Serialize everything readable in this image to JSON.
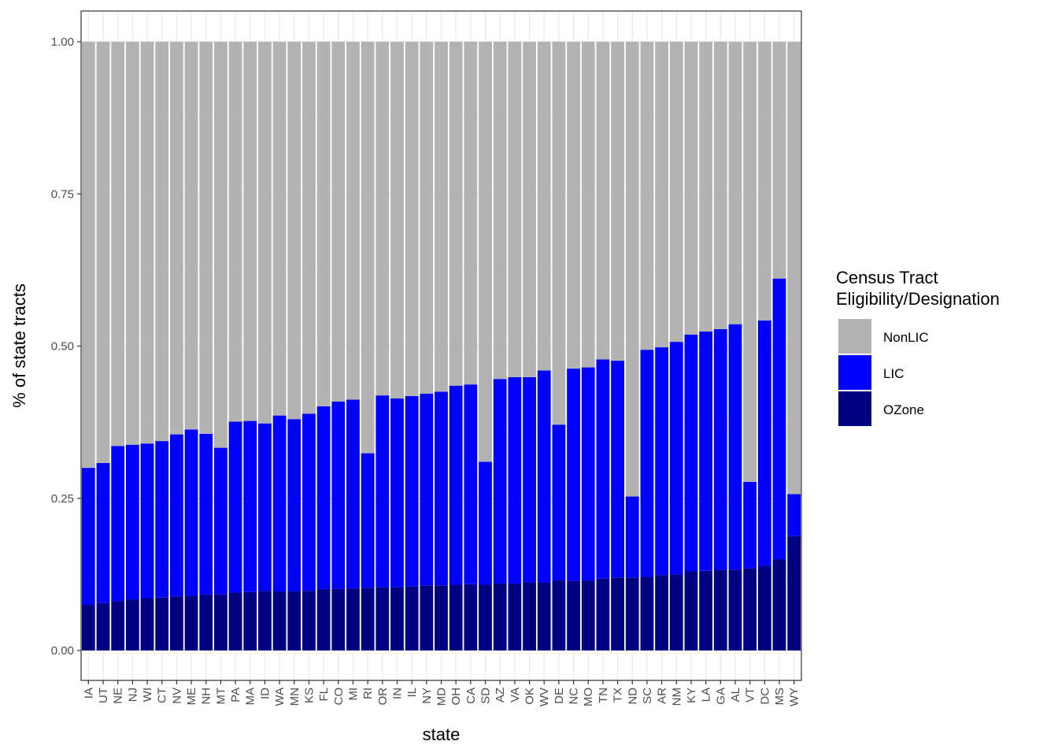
{
  "chart_data": {
    "type": "bar",
    "stacked": true,
    "ylabel": "% of state tracts",
    "xlabel": "state",
    "ylim": [
      -0.05,
      1.05
    ],
    "yticks": [
      0,
      0.25,
      0.5,
      0.75,
      1.0
    ],
    "ytick_labels": [
      "0.00",
      "0.25",
      "0.50",
      "0.75",
      "1.00"
    ],
    "grid": true,
    "legend_position": "right",
    "legend_title": [
      "Census Tract",
      "Eligibility/Designation"
    ],
    "categories": [
      "IA",
      "UT",
      "NE",
      "NJ",
      "WI",
      "CT",
      "NV",
      "ME",
      "NH",
      "MT",
      "PA",
      "MA",
      "ID",
      "WA",
      "MN",
      "KS",
      "FL",
      "CO",
      "MI",
      "RI",
      "OR",
      "IN",
      "IL",
      "NY",
      "MD",
      "OH",
      "CA",
      "SD",
      "AZ",
      "VA",
      "OK",
      "WV",
      "DE",
      "NC",
      "MO",
      "TN",
      "TX",
      "ND",
      "SC",
      "AR",
      "NM",
      "KY",
      "LA",
      "GA",
      "AL",
      "VT",
      "DC",
      "MS",
      "WY"
    ],
    "series": [
      {
        "name": "NonLIC",
        "color": "#b3b3b3",
        "values": [
          0.7,
          0.692,
          0.664,
          0.662,
          0.66,
          0.656,
          0.645,
          0.637,
          0.644,
          0.667,
          0.624,
          0.623,
          0.627,
          0.614,
          0.62,
          0.611,
          0.599,
          0.591,
          0.588,
          0.676,
          0.581,
          0.586,
          0.582,
          0.578,
          0.575,
          0.565,
          0.563,
          0.69,
          0.554,
          0.551,
          0.551,
          0.54,
          0.629,
          0.537,
          0.535,
          0.522,
          0.524,
          0.747,
          0.506,
          0.502,
          0.493,
          0.481,
          0.476,
          0.472,
          0.464,
          0.723,
          0.458,
          0.389,
          0.743
        ]
      },
      {
        "name": "LIC",
        "color": "#0000ff",
        "values": [
          0.225,
          0.23,
          0.255,
          0.254,
          0.254,
          0.257,
          0.266,
          0.273,
          0.264,
          0.241,
          0.281,
          0.281,
          0.275,
          0.289,
          0.283,
          0.291,
          0.3,
          0.308,
          0.31,
          0.221,
          0.315,
          0.31,
          0.313,
          0.315,
          0.318,
          0.327,
          0.328,
          0.202,
          0.336,
          0.339,
          0.337,
          0.348,
          0.256,
          0.349,
          0.35,
          0.36,
          0.356,
          0.133,
          0.373,
          0.374,
          0.382,
          0.389,
          0.393,
          0.396,
          0.403,
          0.142,
          0.403,
          0.461,
          0.069
        ]
      },
      {
        "name": "OZone",
        "color": "#000080",
        "values": [
          0.075,
          0.078,
          0.081,
          0.084,
          0.086,
          0.087,
          0.089,
          0.09,
          0.092,
          0.092,
          0.095,
          0.096,
          0.098,
          0.097,
          0.097,
          0.098,
          0.101,
          0.101,
          0.102,
          0.103,
          0.104,
          0.104,
          0.105,
          0.107,
          0.107,
          0.108,
          0.109,
          0.108,
          0.11,
          0.11,
          0.112,
          0.112,
          0.115,
          0.114,
          0.115,
          0.118,
          0.12,
          0.12,
          0.121,
          0.124,
          0.125,
          0.13,
          0.131,
          0.132,
          0.133,
          0.135,
          0.139,
          0.15,
          0.188
        ]
      }
    ]
  }
}
